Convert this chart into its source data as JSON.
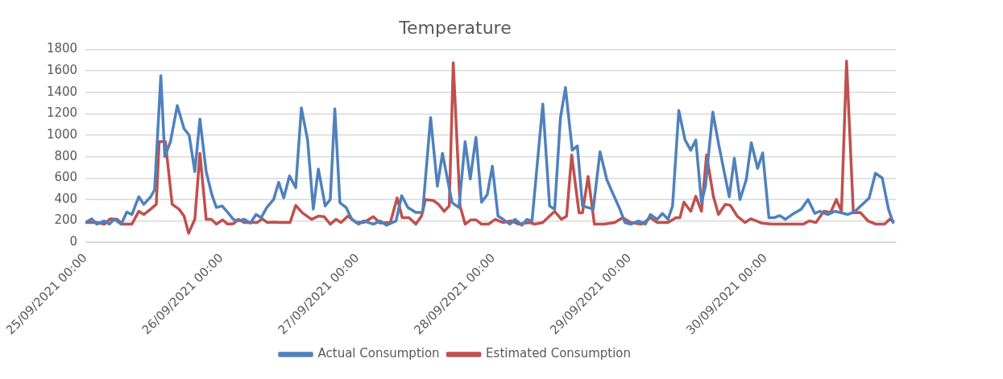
{
  "chart_data": {
    "type": "line",
    "title": "Temperature",
    "xlim": [
      "2021-09-25T00:00",
      "2021-09-30T23:00"
    ],
    "xticks": [
      {
        "value": "2021-09-25T00:00",
        "label": "25/09/2021 00:00"
      },
      {
        "value": "2021-09-26T00:00",
        "label": "26/09/2021 00:00"
      },
      {
        "value": "2021-09-27T00:00",
        "label": "27/09/2021 00:00"
      },
      {
        "value": "2021-09-28T00:00",
        "label": "28/09/2021 00:00"
      },
      {
        "value": "2021-09-29T00:00",
        "label": "29/09/2021 00:00"
      },
      {
        "value": "2021-09-30T00:00",
        "label": "30/09/2021 00:00"
      }
    ],
    "ylim": [
      0,
      1800
    ],
    "yticks": [
      0,
      200,
      400,
      600,
      800,
      1000,
      1200,
      1400,
      1600,
      1800
    ],
    "grid": "y",
    "legend": "bottom",
    "line_style": "solid",
    "series": [
      {
        "name": "Actual Consumption",
        "color": "#4f81bd",
        "x": [
          "2021-09-25T00:00",
          "2021-09-25T01:06",
          "2021-09-25T02:00",
          "2021-09-25T03:18",
          "2021-09-25T04:12",
          "2021-09-25T05:06",
          "2021-09-25T06:18",
          "2021-09-25T07:18",
          "2021-09-25T08:12",
          "2021-09-25T09:24",
          "2021-09-25T10:18",
          "2021-09-25T11:30",
          "2021-09-25T12:12",
          "2021-09-25T13:18",
          "2021-09-25T14:00",
          "2021-09-25T15:00",
          "2021-09-25T16:12",
          "2021-09-25T17:24",
          "2021-09-25T18:18",
          "2021-09-25T19:18",
          "2021-09-25T20:12",
          "2021-09-25T21:18",
          "2021-09-25T22:18",
          "2021-09-25T23:06",
          "2021-09-26T00:06",
          "2021-09-26T01:06",
          "2021-09-26T02:06",
          "2021-09-26T03:00",
          "2021-09-26T04:00",
          "2021-09-26T05:06",
          "2021-09-26T06:06",
          "2021-09-26T07:00",
          "2021-09-26T08:00",
          "2021-09-26T09:12",
          "2021-09-26T10:06",
          "2021-09-26T11:00",
          "2021-09-26T12:00",
          "2021-09-26T13:06",
          "2021-09-26T14:06",
          "2021-09-26T15:12",
          "2021-09-26T16:12",
          "2021-09-26T17:06",
          "2021-09-26T18:18",
          "2021-09-26T19:12",
          "2021-09-26T20:00",
          "2021-09-26T20:54",
          "2021-09-26T22:00",
          "2021-09-26T23:00",
          "2021-09-27T00:12",
          "2021-09-27T01:06",
          "2021-09-27T02:48",
          "2021-09-27T04:00",
          "2021-09-27T05:06",
          "2021-09-27T06:48",
          "2021-09-27T07:48",
          "2021-09-27T08:54",
          "2021-09-27T10:18",
          "2021-09-27T11:30",
          "2021-09-27T12:54",
          "2021-09-27T14:06",
          "2021-09-27T15:00",
          "2021-09-27T15:54",
          "2021-09-27T16:42",
          "2021-09-27T17:54",
          "2021-09-27T19:00",
          "2021-09-27T19:54",
          "2021-09-27T20:54",
          "2021-09-27T21:54",
          "2021-09-27T22:54",
          "2021-09-27T23:48",
          "2021-09-28T00:48",
          "2021-09-28T01:42",
          "2021-09-28T02:54",
          "2021-09-28T03:48",
          "2021-09-28T05:00",
          "2021-09-28T05:54",
          "2021-09-28T06:48",
          "2021-09-28T08:42",
          "2021-09-28T09:54",
          "2021-09-28T10:48",
          "2021-09-28T11:48",
          "2021-09-28T12:42",
          "2021-09-28T13:54",
          "2021-09-28T14:48",
          "2021-09-28T15:42",
          "2021-09-28T17:36",
          "2021-09-28T18:48",
          "2021-09-28T20:00",
          "2021-09-28T20:54",
          "2021-09-28T22:18",
          "2021-09-28T23:12",
          "2021-09-29T00:12",
          "2021-09-29T01:36",
          "2021-09-29T02:48",
          "2021-09-29T03:42",
          "2021-09-29T04:54",
          "2021-09-29T05:48",
          "2021-09-29T06:48",
          "2021-09-29T07:36",
          "2021-09-29T08:42",
          "2021-09-29T09:48",
          "2021-09-29T10:48",
          "2021-09-29T11:42",
          "2021-09-29T12:42",
          "2021-09-29T13:24",
          "2021-09-29T14:42",
          "2021-09-29T15:42",
          "2021-09-29T16:42",
          "2021-09-29T17:36",
          "2021-09-29T18:30",
          "2021-09-29T19:30",
          "2021-09-29T20:36",
          "2021-09-29T21:30",
          "2021-09-29T22:36",
          "2021-09-29T23:30",
          "2021-09-30T00:36",
          "2021-09-30T01:30",
          "2021-09-30T02:30",
          "2021-09-30T03:30",
          "2021-09-30T04:42",
          "2021-09-30T06:18",
          "2021-09-30T07:30",
          "2021-09-30T08:42",
          "2021-09-30T09:36",
          "2021-09-30T11:00",
          "2021-09-30T12:12",
          "2021-09-30T13:24",
          "2021-09-30T14:30",
          "2021-09-30T15:42",
          "2021-09-30T17:06",
          "2021-09-30T18:18",
          "2021-09-30T19:24",
          "2021-09-30T20:36",
          "2021-09-30T21:42",
          "2021-09-30T22:30"
        ],
        "values": [
          185,
          220,
          170,
          200,
          170,
          215,
          170,
          283,
          260,
          425,
          355,
          425,
          490,
          1555,
          800,
          940,
          1275,
          1060,
          1000,
          660,
          1150,
          660,
          445,
          325,
          340,
          280,
          215,
          200,
          215,
          180,
          260,
          230,
          325,
          400,
          560,
          415,
          620,
          510,
          1255,
          955,
          310,
          685,
          340,
          400,
          1245,
          370,
          325,
          215,
          170,
          200,
          170,
          200,
          160,
          200,
          435,
          325,
          280,
          280,
          1165,
          525,
          830,
          585,
          370,
          325,
          940,
          590,
          980,
          375,
          445,
          710,
          245,
          215,
          170,
          215,
          160,
          215,
          200,
          1290,
          340,
          310,
          1155,
          1445,
          860,
          900,
          340,
          310,
          845,
          585,
          475,
          310,
          185,
          170,
          200,
          170,
          260,
          215,
          270,
          215,
          340,
          1230,
          955,
          860,
          955,
          370,
          525,
          1215,
          925,
          660,
          425,
          785,
          400,
          585,
          930,
          690,
          835,
          230,
          230,
          250,
          215,
          260,
          310,
          400,
          270,
          290,
          260,
          290,
          275,
          260,
          285,
          355,
          415,
          645,
          600,
          310,
          185
        ]
      },
      {
        "name": "Estimated Consumption",
        "color": "#c0504d",
        "x": [
          "2021-09-25T00:00",
          "2021-09-25T02:00",
          "2021-09-25T03:18",
          "2021-09-25T04:24",
          "2021-09-25T05:36",
          "2021-09-25T06:30",
          "2021-09-25T08:12",
          "2021-09-25T09:24",
          "2021-09-25T10:18",
          "2021-09-25T11:30",
          "2021-09-25T12:30",
          "2021-09-25T13:00",
          "2021-09-25T14:06",
          "2021-09-25T15:18",
          "2021-09-25T16:30",
          "2021-09-25T17:24",
          "2021-09-25T18:12",
          "2021-09-25T19:18",
          "2021-09-25T20:12",
          "2021-09-25T21:18",
          "2021-09-25T22:12",
          "2021-09-25T23:06",
          "2021-09-26T00:12",
          "2021-09-26T01:06",
          "2021-09-26T02:06",
          "2021-09-26T03:00",
          "2021-09-26T04:00",
          "2021-09-26T05:06",
          "2021-09-26T06:18",
          "2021-09-26T07:12",
          "2021-09-26T08:06",
          "2021-09-26T09:18",
          "2021-09-26T10:12",
          "2021-09-26T12:06",
          "2021-09-26T13:06",
          "2021-09-26T14:18",
          "2021-09-26T15:54",
          "2021-09-26T17:06",
          "2021-09-26T18:06",
          "2021-09-26T19:12",
          "2021-09-26T20:12",
          "2021-09-26T21:06",
          "2021-09-26T22:18",
          "2021-09-26T23:42",
          "2021-09-27T01:06",
          "2021-09-27T02:48",
          "2021-09-27T04:00",
          "2021-09-27T05:48",
          "2021-09-27T07:00",
          "2021-09-27T07:54",
          "2021-09-27T09:06",
          "2021-09-27T10:18",
          "2021-09-27T11:18",
          "2021-09-27T12:00",
          "2021-09-27T13:24",
          "2021-09-27T14:18",
          "2021-09-27T15:18",
          "2021-09-27T16:12",
          "2021-09-27T16:54",
          "2021-09-27T18:06",
          "2021-09-27T19:00",
          "2021-09-27T20:00",
          "2021-09-27T20:54",
          "2021-09-27T21:54",
          "2021-09-27T23:06",
          "2021-09-28T00:18",
          "2021-09-28T01:42",
          "2021-09-28T03:06",
          "2021-09-28T04:30",
          "2021-09-28T06:18",
          "2021-09-28T07:18",
          "2021-09-28T08:42",
          "2021-09-28T09:36",
          "2021-09-28T10:48",
          "2021-09-28T12:00",
          "2021-09-28T12:54",
          "2021-09-28T13:48",
          "2021-09-28T15:06",
          "2021-09-28T15:42",
          "2021-09-28T16:42",
          "2021-09-28T17:48",
          "2021-09-28T19:30",
          "2021-09-28T21:24",
          "2021-09-28T22:48",
          "2021-09-29T00:12",
          "2021-09-29T02:06",
          "2021-09-29T03:42",
          "2021-09-29T04:54",
          "2021-09-29T06:48",
          "2021-09-29T08:12",
          "2021-09-29T08:54",
          "2021-09-29T09:36",
          "2021-09-29T10:48",
          "2021-09-29T11:42",
          "2021-09-29T12:42",
          "2021-09-29T13:36",
          "2021-09-29T14:48",
          "2021-09-29T15:42",
          "2021-09-29T16:54",
          "2021-09-29T17:48",
          "2021-09-29T19:00",
          "2021-09-29T20:24",
          "2021-09-29T21:24",
          "2021-09-29T23:18",
          "2021-09-30T01:06",
          "2021-09-30T04:24",
          "2021-09-30T06:42",
          "2021-09-30T07:42",
          "2021-09-30T08:54",
          "2021-09-30T10:18",
          "2021-09-30T11:30",
          "2021-09-30T12:30",
          "2021-09-30T13:24",
          "2021-09-30T14:18",
          "2021-09-30T15:30",
          "2021-09-30T16:42",
          "2021-09-30T18:06",
          "2021-09-30T19:30",
          "2021-09-30T21:00",
          "2021-09-30T21:54",
          "2021-09-30T22:30"
        ],
        "values": [
          185,
          185,
          170,
          220,
          215,
          170,
          170,
          290,
          260,
          310,
          355,
          940,
          940,
          355,
          310,
          245,
          85,
          215,
          830,
          215,
          215,
          170,
          210,
          170,
          175,
          215,
          185,
          185,
          185,
          220,
          185,
          190,
          185,
          185,
          345,
          275,
          215,
          245,
          240,
          170,
          215,
          185,
          245,
          190,
          185,
          240,
          180,
          185,
          415,
          230,
          230,
          170,
          245,
          400,
          390,
          355,
          290,
          340,
          1675,
          340,
          170,
          210,
          210,
          170,
          170,
          215,
          185,
          200,
          170,
          185,
          170,
          185,
          230,
          290,
          215,
          245,
          815,
          275,
          275,
          615,
          170,
          170,
          185,
          230,
          185,
          170,
          230,
          185,
          185,
          230,
          230,
          375,
          290,
          430,
          290,
          815,
          430,
          260,
          355,
          345,
          245,
          185,
          220,
          180,
          170,
          170,
          170,
          200,
          185,
          290,
          280,
          400,
          290,
          1690,
          275,
          280,
          200,
          170,
          170,
          215,
          200
        ]
      }
    ]
  }
}
